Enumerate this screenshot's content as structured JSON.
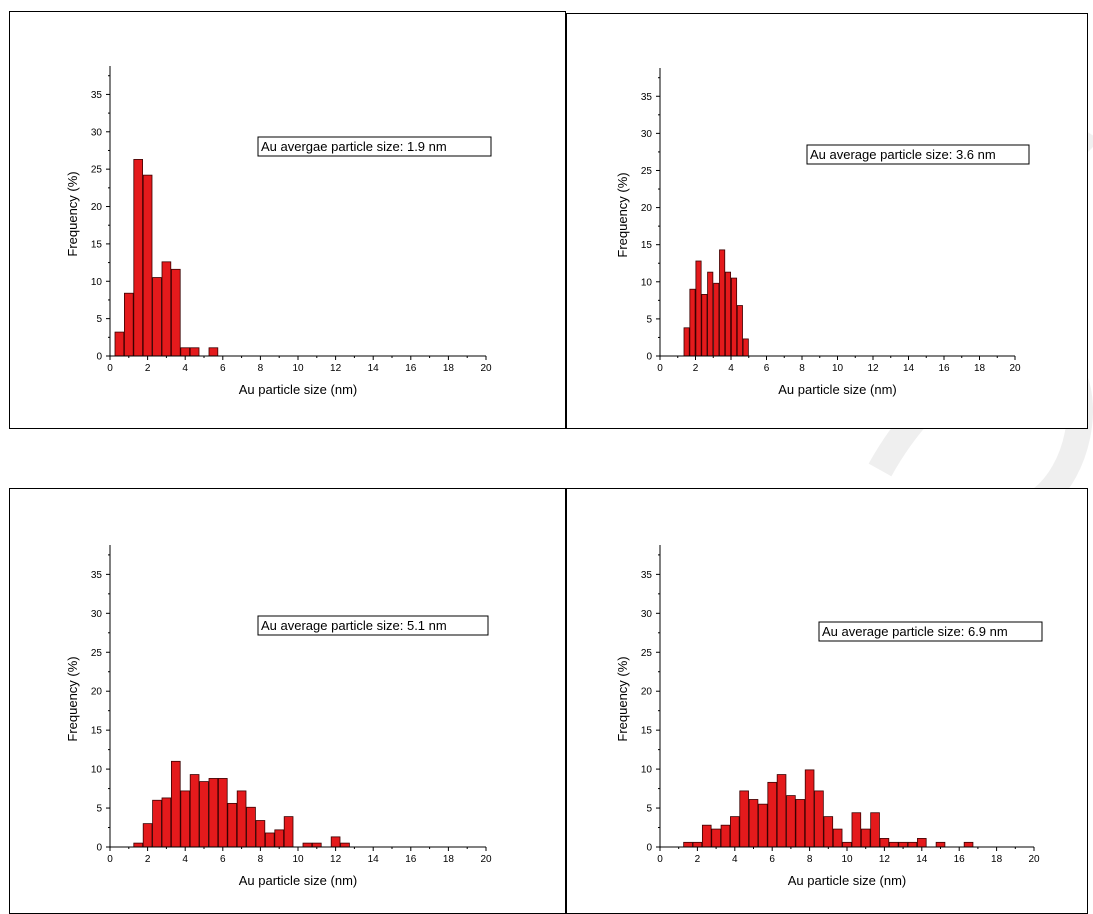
{
  "colors": {
    "bar_fill": "#e41a1c",
    "bar_stroke": "#3a0000",
    "axis": "#000000",
    "watermark": "#eeeeee"
  },
  "chart_data": [
    {
      "type": "bar",
      "xlabel": "Au particle size (nm)",
      "ylabel": "Frequency (%)",
      "xlim": [
        0,
        20
      ],
      "ylim": [
        0,
        38
      ],
      "xticks": [
        "0",
        "2",
        "4",
        "6",
        "8",
        "10",
        "12",
        "14",
        "16",
        "18",
        "20"
      ],
      "yticks": [
        "0",
        "5",
        "10",
        "15",
        "20",
        "25",
        "30",
        "35"
      ],
      "annotation": "Au avergae particle size: 1.9 nm",
      "bin_width": 0.5,
      "bins": [
        {
          "x": 0.5,
          "y": 3.2
        },
        {
          "x": 1.0,
          "y": 8.4
        },
        {
          "x": 1.5,
          "y": 26.3
        },
        {
          "x": 2.0,
          "y": 24.2
        },
        {
          "x": 2.5,
          "y": 10.5
        },
        {
          "x": 3.0,
          "y": 12.6
        },
        {
          "x": 3.5,
          "y": 11.6
        },
        {
          "x": 4.0,
          "y": 1.1
        },
        {
          "x": 4.5,
          "y": 1.1
        },
        {
          "x": 5.5,
          "y": 1.1
        }
      ]
    },
    {
      "type": "bar",
      "xlabel": "Au particle size (nm)",
      "ylabel": "Frequency (%)",
      "xlim": [
        0,
        20
      ],
      "ylim": [
        0,
        38
      ],
      "xticks": [
        "0",
        "2",
        "4",
        "6",
        "8",
        "10",
        "12",
        "14",
        "16",
        "18",
        "20"
      ],
      "yticks": [
        "0",
        "5",
        "10",
        "15",
        "20",
        "25",
        "30",
        "35"
      ],
      "annotation": "Au average particle size: 3.6 nm",
      "bin_width": 0.33,
      "bins": [
        {
          "x": 1.5,
          "y": 3.8
        },
        {
          "x": 1.83,
          "y": 9.0
        },
        {
          "x": 2.17,
          "y": 12.8
        },
        {
          "x": 2.5,
          "y": 8.3
        },
        {
          "x": 2.83,
          "y": 11.3
        },
        {
          "x": 3.17,
          "y": 9.8
        },
        {
          "x": 3.5,
          "y": 14.3
        },
        {
          "x": 3.83,
          "y": 11.3
        },
        {
          "x": 4.17,
          "y": 10.5
        },
        {
          "x": 4.5,
          "y": 6.8
        },
        {
          "x": 4.83,
          "y": 2.3
        }
      ]
    },
    {
      "type": "bar",
      "xlabel": "Au particle size (nm)",
      "ylabel": "Frequency (%)",
      "xlim": [
        0,
        20
      ],
      "ylim": [
        0,
        38
      ],
      "xticks": [
        "0",
        "2",
        "4",
        "6",
        "8",
        "10",
        "12",
        "14",
        "16",
        "18",
        "20"
      ],
      "yticks": [
        "0",
        "5",
        "10",
        "15",
        "20",
        "25",
        "30",
        "35"
      ],
      "annotation": "Au average particle size: 5.1 nm",
      "bin_width": 0.5,
      "bins": [
        {
          "x": 1.5,
          "y": 0.5
        },
        {
          "x": 2.0,
          "y": 3.0
        },
        {
          "x": 2.5,
          "y": 6.0
        },
        {
          "x": 3.0,
          "y": 6.3
        },
        {
          "x": 3.5,
          "y": 11.0
        },
        {
          "x": 4.0,
          "y": 7.2
        },
        {
          "x": 4.5,
          "y": 9.3
        },
        {
          "x": 5.0,
          "y": 8.4
        },
        {
          "x": 5.5,
          "y": 8.8
        },
        {
          "x": 6.0,
          "y": 8.8
        },
        {
          "x": 6.5,
          "y": 5.6
        },
        {
          "x": 7.0,
          "y": 7.2
        },
        {
          "x": 7.5,
          "y": 5.1
        },
        {
          "x": 8.0,
          "y": 3.4
        },
        {
          "x": 8.5,
          "y": 1.8
        },
        {
          "x": 9.0,
          "y": 2.2
        },
        {
          "x": 9.5,
          "y": 3.9
        },
        {
          "x": 10.5,
          "y": 0.5
        },
        {
          "x": 11.0,
          "y": 0.5
        },
        {
          "x": 12.0,
          "y": 1.3
        },
        {
          "x": 12.5,
          "y": 0.5
        }
      ]
    },
    {
      "type": "bar",
      "xlabel": "Au particle size (nm)",
      "ylabel": "Frequency (%)",
      "xlim": [
        0,
        20
      ],
      "ylim": [
        0,
        38
      ],
      "xticks": [
        "0",
        "2",
        "4",
        "6",
        "8",
        "10",
        "12",
        "14",
        "16",
        "18",
        "20"
      ],
      "yticks": [
        "0",
        "5",
        "10",
        "15",
        "20",
        "25",
        "30",
        "35"
      ],
      "annotation": "Au average particle size: 6.9 nm",
      "bin_width": 0.5,
      "bins": [
        {
          "x": 1.5,
          "y": 0.6
        },
        {
          "x": 2.0,
          "y": 0.6
        },
        {
          "x": 2.5,
          "y": 2.8
        },
        {
          "x": 3.0,
          "y": 2.3
        },
        {
          "x": 3.5,
          "y": 2.8
        },
        {
          "x": 4.0,
          "y": 3.9
        },
        {
          "x": 4.5,
          "y": 7.2
        },
        {
          "x": 5.0,
          "y": 6.1
        },
        {
          "x": 5.5,
          "y": 5.5
        },
        {
          "x": 6.0,
          "y": 8.3
        },
        {
          "x": 6.5,
          "y": 9.3
        },
        {
          "x": 7.0,
          "y": 6.6
        },
        {
          "x": 7.5,
          "y": 6.1
        },
        {
          "x": 8.0,
          "y": 9.9
        },
        {
          "x": 8.5,
          "y": 7.2
        },
        {
          "x": 9.0,
          "y": 3.9
        },
        {
          "x": 9.5,
          "y": 2.3
        },
        {
          "x": 10.0,
          "y": 0.6
        },
        {
          "x": 10.5,
          "y": 4.4
        },
        {
          "x": 11.0,
          "y": 2.3
        },
        {
          "x": 11.5,
          "y": 4.4
        },
        {
          "x": 12.0,
          "y": 1.1
        },
        {
          "x": 12.5,
          "y": 0.6
        },
        {
          "x": 13.0,
          "y": 0.6
        },
        {
          "x": 13.5,
          "y": 0.6
        },
        {
          "x": 14.0,
          "y": 1.1
        },
        {
          "x": 15.0,
          "y": 0.6
        },
        {
          "x": 16.5,
          "y": 0.6
        }
      ]
    }
  ]
}
